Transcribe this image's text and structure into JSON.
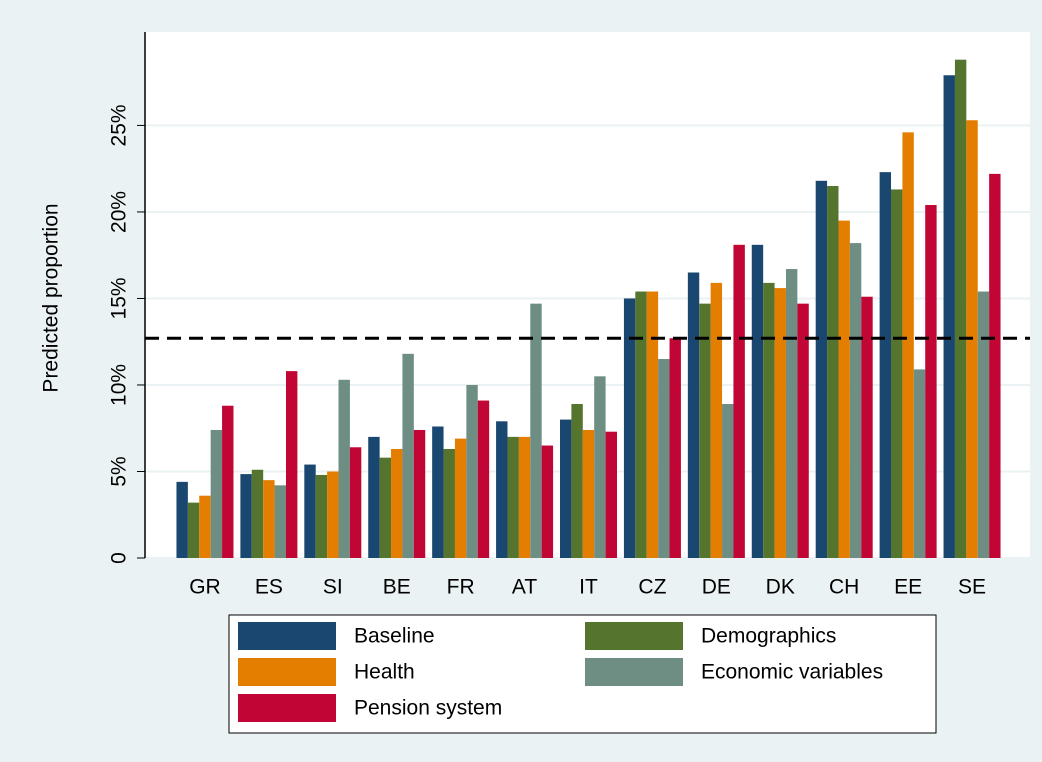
{
  "chart_data": {
    "type": "bar",
    "y_label": "Predicted proportion",
    "categories": [
      "GR",
      "ES",
      "SI",
      "BE",
      "FR",
      "AT",
      "IT",
      "CZ",
      "DE",
      "DK",
      "CH",
      "EE",
      "SE"
    ],
    "series": [
      {
        "name": "Baseline",
        "color": "#1a476f",
        "values": [
          4.4,
          4.85,
          5.4,
          7.0,
          7.6,
          7.9,
          8.0,
          15.0,
          16.5,
          18.1,
          21.8,
          22.3,
          27.9
        ]
      },
      {
        "name": "Demographics",
        "color": "#55752f",
        "values": [
          3.2,
          5.1,
          4.8,
          5.8,
          6.3,
          7.0,
          8.9,
          15.4,
          14.7,
          15.9,
          21.5,
          21.3,
          28.8
        ]
      },
      {
        "name": "Health",
        "color": "#e37e00",
        "values": [
          3.6,
          4.5,
          5.0,
          6.3,
          6.9,
          7.0,
          7.4,
          15.4,
          15.9,
          15.6,
          19.5,
          24.6,
          25.3
        ]
      },
      {
        "name": "Economic variables",
        "color": "#6e8e84",
        "values": [
          7.4,
          4.2,
          10.3,
          11.8,
          10.0,
          14.7,
          10.5,
          11.5,
          8.9,
          16.7,
          18.2,
          10.9,
          15.4
        ]
      },
      {
        "name": "Pension system",
        "color": "#c10534",
        "values": [
          8.8,
          10.8,
          6.4,
          7.4,
          9.1,
          6.5,
          7.3,
          12.7,
          18.1,
          14.7,
          15.1,
          20.4,
          22.2
        ]
      }
    ],
    "reference_line": 12.7,
    "ylim": [
      0,
      30.4
    ],
    "yticks": [
      0,
      {
        "value": 5,
        "label": "5%"
      },
      {
        "value": 10,
        "label": "10%"
      },
      {
        "value": 15,
        "label": "15%"
      },
      {
        "value": 20,
        "label": "20%"
      },
      {
        "value": 25,
        "label": "25%"
      }
    ],
    "grid": true
  }
}
